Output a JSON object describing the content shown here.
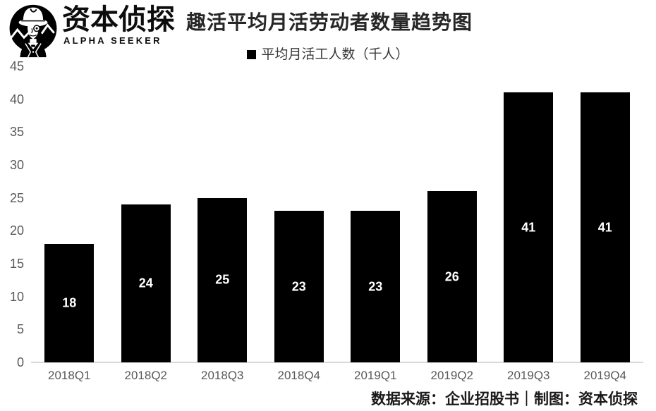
{
  "brand": {
    "name": "资本侦探",
    "subtitle": "ALPHA SEEKER",
    "logo_icon": "detective-logo-icon"
  },
  "header": {
    "title": "趣活平均月活劳动者数量趋势图"
  },
  "legend": {
    "marker_icon": "black-square-icon",
    "marker_color": "#000000",
    "label": "平均月活工人数（千人）"
  },
  "footer": {
    "source_line": "数据来源：企业招股书｜制图：资本侦探"
  },
  "colors": {
    "bar": "#000000",
    "bar_label": "#ffffff",
    "axis_label": "#595959",
    "baseline": "#d9d9d9",
    "background": "#ffffff",
    "title": "#262626"
  },
  "chart_data": {
    "type": "bar",
    "title": "趣活平均月活劳动者数量趋势图",
    "legend_entries": [
      "平均月活工人数（千人）"
    ],
    "legend_position": "top",
    "categories": [
      "2018Q1",
      "2018Q2",
      "2018Q3",
      "2018Q4",
      "2019Q1",
      "2019Q2",
      "2019Q3",
      "2019Q4"
    ],
    "values": [
      18,
      24,
      25,
      23,
      23,
      26,
      41,
      41
    ],
    "xlabel": "",
    "ylabel": "",
    "ylim": [
      0,
      45
    ],
    "yticks": [
      0,
      5,
      10,
      15,
      20,
      25,
      30,
      35,
      40,
      45
    ],
    "grid": false,
    "data_labels_shown": true
  }
}
